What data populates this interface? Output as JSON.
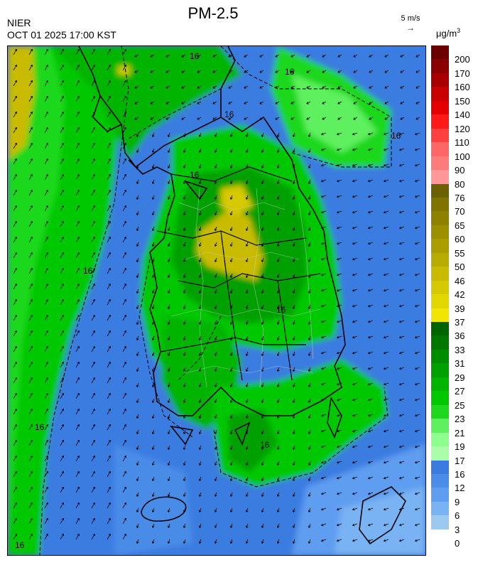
{
  "header": {
    "title": "PM-2.5",
    "agency": "NIER",
    "datetime": "OCT 01 2025 17:00 KST",
    "wind_scale_label": "5 m/s",
    "unit_base": "μg/m",
    "unit_exp": "3"
  },
  "map": {
    "contour_labels": [
      "16",
      "16",
      "16",
      "16",
      "16",
      "16",
      "16",
      "16",
      "16",
      "16"
    ]
  },
  "legend": {
    "bins": [
      {
        "label": "200",
        "color": "#6b0000"
      },
      {
        "label": "170",
        "color": "#8b0000"
      },
      {
        "label": "160",
        "color": "#a80000"
      },
      {
        "label": "150",
        "color": "#c80000"
      },
      {
        "label": "140",
        "color": "#e40000"
      },
      {
        "label": "120",
        "color": "#ff1a1a"
      },
      {
        "label": "110",
        "color": "#ff4040"
      },
      {
        "label": "100",
        "color": "#ff6666"
      },
      {
        "label": "90",
        "color": "#ff7a7a"
      },
      {
        "label": "80",
        "color": "#ff9999"
      },
      {
        "label": "76",
        "color": "#6b6100"
      },
      {
        "label": "70",
        "color": "#807300"
      },
      {
        "label": "65",
        "color": "#8e8100"
      },
      {
        "label": "60",
        "color": "#9c8f00"
      },
      {
        "label": "55",
        "color": "#ab9d00"
      },
      {
        "label": "50",
        "color": "#b9ac00"
      },
      {
        "label": "46",
        "color": "#c8bb00"
      },
      {
        "label": "42",
        "color": "#d6c900"
      },
      {
        "label": "39",
        "color": "#e3d700"
      },
      {
        "label": "37",
        "color": "#f1e600"
      },
      {
        "label": "36",
        "color": "#006400"
      },
      {
        "label": "33",
        "color": "#007800"
      },
      {
        "label": "31",
        "color": "#008c00"
      },
      {
        "label": "29",
        "color": "#00a000"
      },
      {
        "label": "27",
        "color": "#00b400"
      },
      {
        "label": "25",
        "color": "#00c800"
      },
      {
        "label": "23",
        "color": "#1ed81e"
      },
      {
        "label": "21",
        "color": "#5ef05e"
      },
      {
        "label": "19",
        "color": "#8cff8c"
      },
      {
        "label": "17",
        "color": "#a8ffa8"
      },
      {
        "label": "16",
        "color": "#3b7be0"
      },
      {
        "label": "12",
        "color": "#4a8ce8"
      },
      {
        "label": "9",
        "color": "#5f9df0"
      },
      {
        "label": "6",
        "color": "#7ab3f3"
      },
      {
        "label": "3",
        "color": "#9cc9ef"
      },
      {
        "label": "0",
        "color": ""
      }
    ]
  }
}
